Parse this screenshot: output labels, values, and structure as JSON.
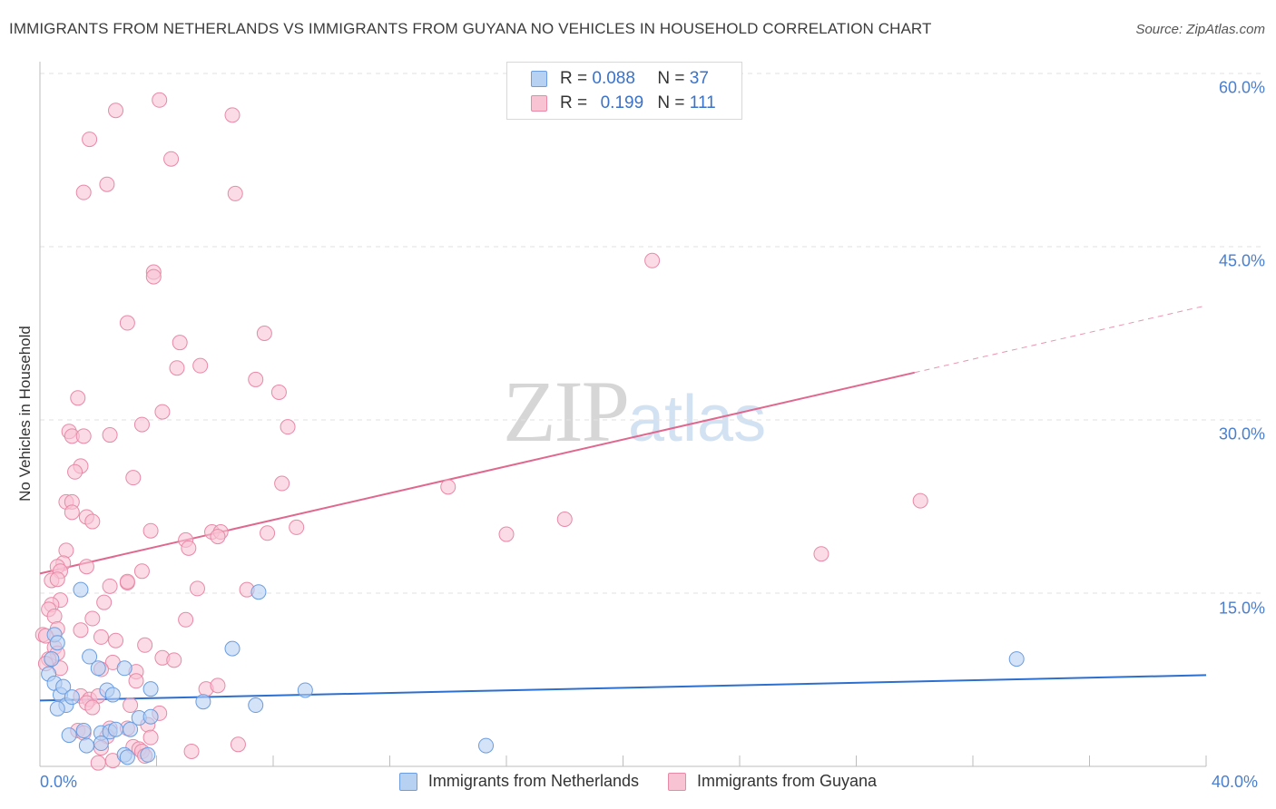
{
  "title": "IMMIGRANTS FROM NETHERLANDS VS IMMIGRANTS FROM GUYANA NO VEHICLES IN HOUSEHOLD CORRELATION CHART",
  "source": "Source: ZipAtlas.com",
  "watermark": {
    "zip": "ZIP",
    "atlas": "atlas"
  },
  "colors": {
    "netherlands_fill": "#b7d1f3",
    "netherlands_stroke": "#6b9de0",
    "netherlands_line": "#2d6fd0",
    "guyana_fill": "#f8c3d3",
    "guyana_stroke": "#e889a7",
    "guyana_line": "#e0688f",
    "tick_text": "#4a7fcf",
    "grid": "#e2e2e2"
  },
  "legend_top": {
    "netherlands": {
      "r_label": "R =",
      "r_value": "0.088",
      "n_label": "N =",
      "n_value": "37"
    },
    "guyana": {
      "r_label": "R =",
      "r_value": "0.199",
      "n_label": "N =",
      "n_value": "111"
    }
  },
  "chart_data": {
    "type": "scatter",
    "title": "IMMIGRANTS FROM NETHERLANDS VS IMMIGRANTS FROM GUYANA NO VEHICLES IN HOUSEHOLD CORRELATION CHART",
    "xlabel": "",
    "ylabel": "No Vehicles in Household",
    "xlim": [
      0,
      40
    ],
    "ylim": [
      0,
      60
    ],
    "x_tick_labels": [
      "0.0%",
      "40.0%"
    ],
    "y_ticks": [
      15,
      30,
      45,
      60
    ],
    "y_tick_labels": [
      "15.0%",
      "30.0%",
      "45.0%",
      "60.0%"
    ],
    "legend": [
      "Immigrants from Netherlands",
      "Immigrants from Guyana"
    ],
    "series": [
      {
        "name": "Immigrants from Netherlands",
        "R": 0.088,
        "N": 37,
        "trend": {
          "x": [
            0,
            40
          ],
          "y": [
            5.7,
            7.9
          ],
          "solid_to": 40
        },
        "points": [
          [
            0.5,
            11.4
          ],
          [
            0.4,
            9.3
          ],
          [
            0.6,
            10.7
          ],
          [
            0.3,
            8.0
          ],
          [
            0.5,
            7.2
          ],
          [
            0.7,
            6.2
          ],
          [
            0.8,
            6.9
          ],
          [
            1.4,
            15.3
          ],
          [
            0.9,
            5.3
          ],
          [
            0.6,
            5.0
          ],
          [
            1.1,
            6.0
          ],
          [
            1.7,
            9.5
          ],
          [
            2.0,
            8.5
          ],
          [
            2.3,
            6.6
          ],
          [
            2.5,
            6.2
          ],
          [
            1.0,
            2.7
          ],
          [
            1.5,
            3.1
          ],
          [
            2.1,
            2.9
          ],
          [
            2.4,
            3.0
          ],
          [
            2.6,
            3.2
          ],
          [
            3.1,
            3.2
          ],
          [
            3.4,
            4.2
          ],
          [
            3.8,
            4.3
          ],
          [
            1.6,
            1.8
          ],
          [
            2.1,
            2.0
          ],
          [
            2.9,
            1.0
          ],
          [
            3.0,
            0.8
          ],
          [
            3.7,
            1.0
          ],
          [
            2.9,
            8.5
          ],
          [
            3.8,
            6.7
          ],
          [
            5.6,
            5.6
          ],
          [
            6.6,
            10.2
          ],
          [
            7.5,
            15.1
          ],
          [
            7.4,
            5.3
          ],
          [
            9.1,
            6.6
          ],
          [
            15.3,
            1.8
          ],
          [
            33.5,
            9.3
          ]
        ]
      },
      {
        "name": "Immigrants from Guyana",
        "R": 0.199,
        "N": 111,
        "trend": {
          "x": [
            0,
            40
          ],
          "y": [
            16.7,
            39.9
          ],
          "solid_to": 30.0
        },
        "points": [
          [
            4.1,
            57.7
          ],
          [
            2.6,
            56.8
          ],
          [
            6.6,
            56.4
          ],
          [
            1.7,
            54.3
          ],
          [
            4.5,
            52.6
          ],
          [
            2.3,
            50.4
          ],
          [
            1.5,
            49.7
          ],
          [
            6.7,
            49.6
          ],
          [
            21.0,
            43.8
          ],
          [
            3.9,
            42.8
          ],
          [
            3.9,
            42.4
          ],
          [
            3.0,
            38.4
          ],
          [
            7.7,
            37.5
          ],
          [
            4.8,
            36.7
          ],
          [
            4.7,
            34.5
          ],
          [
            5.5,
            34.7
          ],
          [
            7.4,
            33.5
          ],
          [
            8.2,
            32.4
          ],
          [
            1.3,
            31.9
          ],
          [
            4.2,
            30.7
          ],
          [
            3.5,
            29.6
          ],
          [
            8.5,
            29.4
          ],
          [
            1.0,
            29.0
          ],
          [
            1.1,
            28.6
          ],
          [
            1.5,
            28.6
          ],
          [
            2.4,
            28.7
          ],
          [
            1.4,
            26.0
          ],
          [
            1.2,
            25.5
          ],
          [
            3.2,
            25.0
          ],
          [
            8.3,
            24.5
          ],
          [
            14.0,
            24.2
          ],
          [
            30.2,
            23.0
          ],
          [
            0.9,
            22.9
          ],
          [
            1.1,
            22.9
          ],
          [
            1.1,
            22.0
          ],
          [
            1.6,
            21.6
          ],
          [
            1.8,
            21.2
          ],
          [
            18.0,
            21.4
          ],
          [
            3.8,
            20.4
          ],
          [
            5.9,
            20.3
          ],
          [
            6.2,
            20.3
          ],
          [
            7.8,
            20.2
          ],
          [
            8.8,
            20.7
          ],
          [
            16.0,
            20.1
          ],
          [
            5.0,
            19.6
          ],
          [
            6.1,
            19.9
          ],
          [
            5.1,
            18.9
          ],
          [
            26.8,
            18.4
          ],
          [
            0.9,
            18.7
          ],
          [
            0.8,
            17.6
          ],
          [
            0.6,
            17.3
          ],
          [
            0.7,
            16.9
          ],
          [
            1.6,
            17.3
          ],
          [
            3.5,
            16.9
          ],
          [
            0.4,
            16.1
          ],
          [
            0.6,
            16.2
          ],
          [
            2.4,
            15.6
          ],
          [
            3.0,
            15.9
          ],
          [
            3.0,
            16.0
          ],
          [
            5.4,
            15.4
          ],
          [
            7.1,
            15.3
          ],
          [
            0.7,
            14.4
          ],
          [
            0.4,
            14.0
          ],
          [
            0.3,
            13.6
          ],
          [
            2.2,
            14.2
          ],
          [
            0.5,
            13.0
          ],
          [
            1.8,
            12.8
          ],
          [
            5.0,
            12.7
          ],
          [
            0.6,
            11.9
          ],
          [
            1.4,
            11.8
          ],
          [
            0.1,
            11.4
          ],
          [
            0.2,
            11.3
          ],
          [
            2.1,
            11.2
          ],
          [
            2.6,
            10.9
          ],
          [
            0.5,
            10.3
          ],
          [
            3.6,
            10.5
          ],
          [
            0.6,
            9.8
          ],
          [
            0.3,
            9.3
          ],
          [
            4.2,
            9.4
          ],
          [
            4.6,
            9.2
          ],
          [
            0.2,
            8.9
          ],
          [
            0.7,
            8.5
          ],
          [
            2.5,
            9.0
          ],
          [
            2.1,
            8.4
          ],
          [
            3.3,
            8.2
          ],
          [
            3.3,
            7.4
          ],
          [
            5.7,
            6.7
          ],
          [
            6.1,
            7.0
          ],
          [
            1.4,
            6.1
          ],
          [
            1.7,
            5.8
          ],
          [
            2.0,
            6.1
          ],
          [
            1.6,
            5.5
          ],
          [
            1.8,
            5.1
          ],
          [
            3.1,
            5.3
          ],
          [
            4.1,
            4.6
          ],
          [
            3.7,
            3.6
          ],
          [
            1.3,
            3.1
          ],
          [
            1.5,
            2.9
          ],
          [
            2.4,
            3.3
          ],
          [
            3.0,
            3.3
          ],
          [
            2.3,
            2.6
          ],
          [
            3.8,
            2.5
          ],
          [
            3.2,
            1.7
          ],
          [
            3.4,
            1.5
          ],
          [
            3.5,
            1.3
          ],
          [
            2.1,
            1.6
          ],
          [
            5.2,
            1.3
          ],
          [
            6.8,
            1.9
          ],
          [
            3.6,
            0.9
          ],
          [
            2.5,
            0.5
          ],
          [
            2.0,
            0.3
          ]
        ]
      }
    ]
  }
}
